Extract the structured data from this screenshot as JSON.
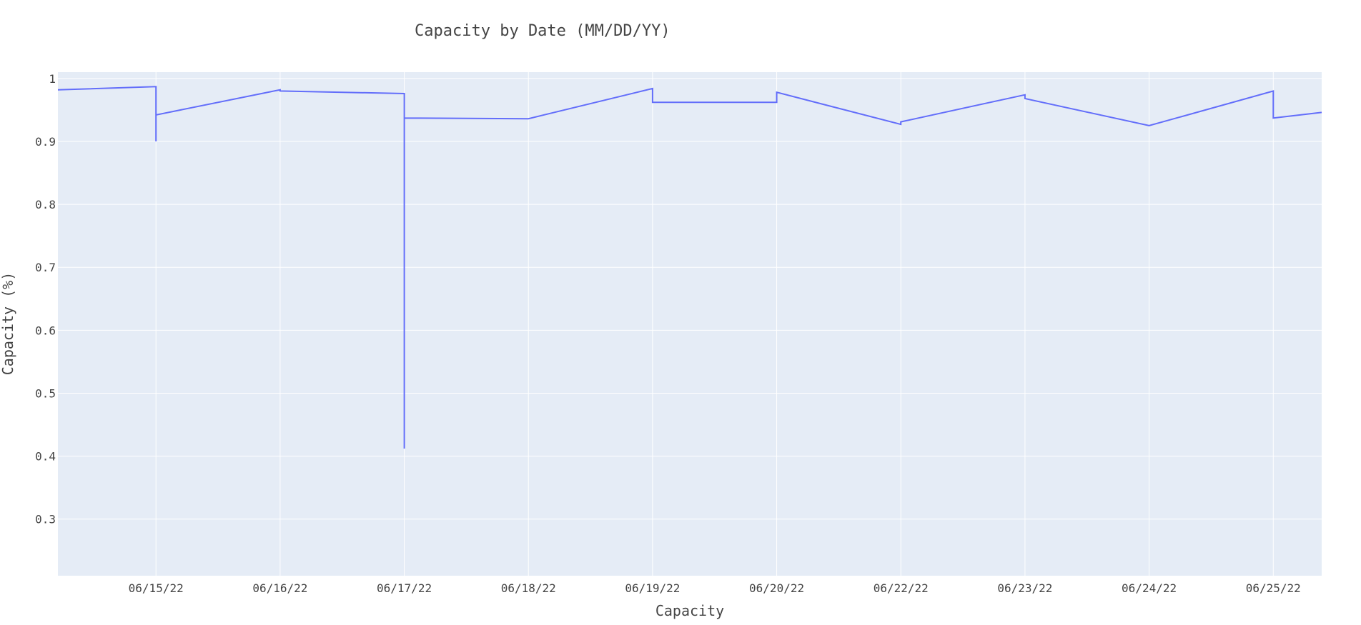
{
  "chart_data": {
    "type": "line",
    "title": "Capacity by Date (MM/DD/YY)",
    "xlabel": "Capacity",
    "ylabel": "Capacity (%)",
    "x_tick_labels": [
      "06/15/22",
      "06/16/22",
      "06/17/22",
      "06/18/22",
      "06/19/22",
      "06/20/22",
      "06/22/22",
      "06/23/22",
      "06/24/22",
      "06/25/22"
    ],
    "y_ticks": [
      0.3,
      0.4,
      0.5,
      0.6,
      0.7,
      0.8,
      0.9,
      1
    ],
    "y_tick_labels": [
      "0.3",
      "0.4",
      "0.5",
      "0.6",
      "0.7",
      "0.8",
      "0.9",
      "1"
    ],
    "xlim": [
      -0.79,
      9.39
    ],
    "ylim": [
      0.21,
      1.01
    ],
    "grid": true,
    "colors": {
      "plot_bg": "#E5ECF6",
      "grid": "#FFFFFF",
      "line": "#636EFA",
      "text": "#444444"
    },
    "series": [
      {
        "x": [
          -0.79,
          0.0,
          0.0,
          0.0,
          0.0,
          1.0,
          1.0,
          2.0,
          2.0,
          2.0,
          2.0,
          3.0,
          4.0,
          4.0,
          5.0,
          5.0,
          6.0,
          6.0,
          7.0,
          7.0,
          8.0,
          9.0,
          9.0,
          9.39
        ],
        "y": [
          0.982,
          0.987,
          0.9,
          0.942,
          0.942,
          0.982,
          0.98,
          0.976,
          0.412,
          0.937,
          0.937,
          0.936,
          0.984,
          0.962,
          0.962,
          0.978,
          0.927,
          0.931,
          0.974,
          0.968,
          0.925,
          0.98,
          0.937,
          0.946
        ]
      }
    ]
  }
}
